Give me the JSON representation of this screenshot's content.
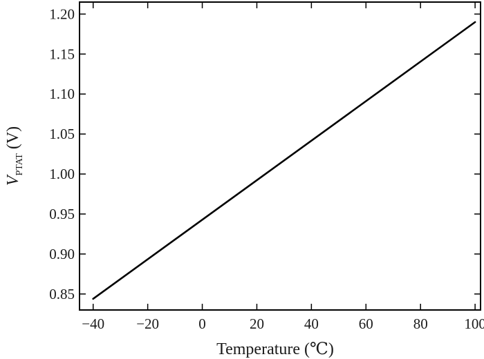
{
  "chart_data": {
    "type": "line",
    "title": "",
    "xlabel": "Temperature (℃)",
    "ylabel": {
      "main": "V",
      "subscript": "PTAT",
      "unit": "(V)"
    },
    "xlim": [
      -45,
      102
    ],
    "ylim": [
      0.83,
      1.215
    ],
    "x_ticks": [
      -40,
      -20,
      0,
      20,
      40,
      60,
      80,
      100
    ],
    "x_tick_labels": [
      "−40",
      "−20",
      "0",
      "20",
      "40",
      "60",
      "80",
      "100"
    ],
    "y_ticks": [
      0.85,
      0.9,
      0.95,
      1.0,
      1.05,
      1.1,
      1.15,
      1.2
    ],
    "y_tick_labels": [
      "0.85",
      "0.90",
      "0.95",
      "1.00",
      "1.05",
      "1.10",
      "1.15",
      "1.20"
    ],
    "grid": false,
    "series": [
      {
        "x": [
          -40,
          100
        ],
        "y": [
          0.844,
          1.19
        ],
        "color": "#000000"
      }
    ]
  }
}
